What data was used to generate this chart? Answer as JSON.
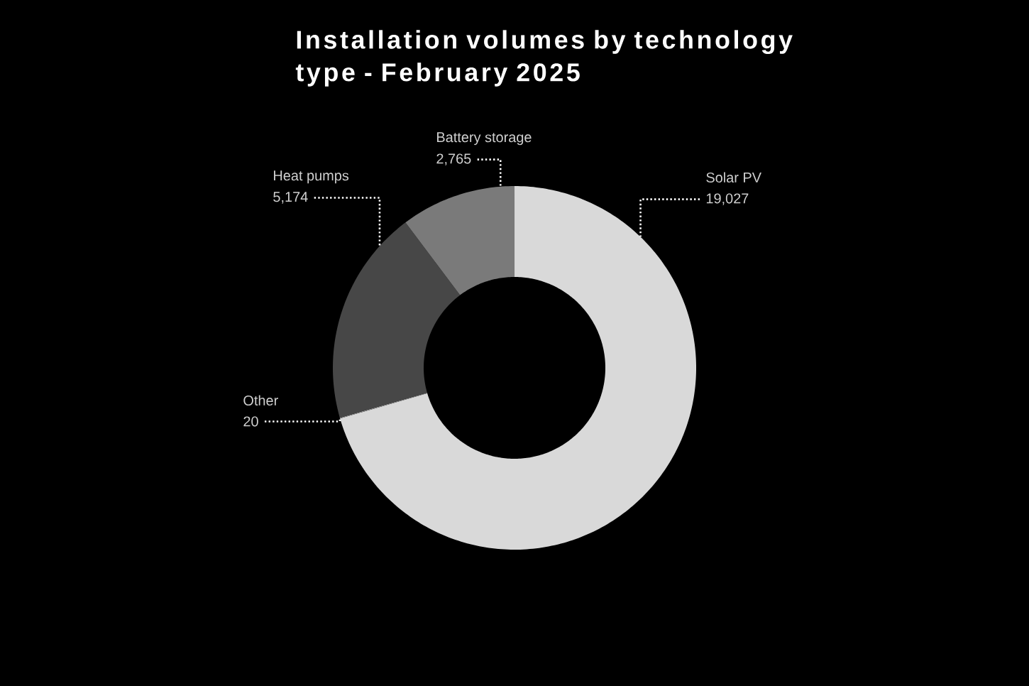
{
  "chart_data": {
    "type": "donut",
    "title": "Installation volumes by technology type - February 2025",
    "categories": [
      "Solar PV",
      "Other",
      "Heat pumps",
      "Battery storage"
    ],
    "values": [
      19027,
      20,
      5174,
      2765
    ],
    "value_labels": [
      "19,027",
      "20",
      "5,174",
      "2,765"
    ],
    "colors": [
      "#d9d9d9",
      "#9a9a9a",
      "#474747",
      "#7a7a7a"
    ]
  }
}
